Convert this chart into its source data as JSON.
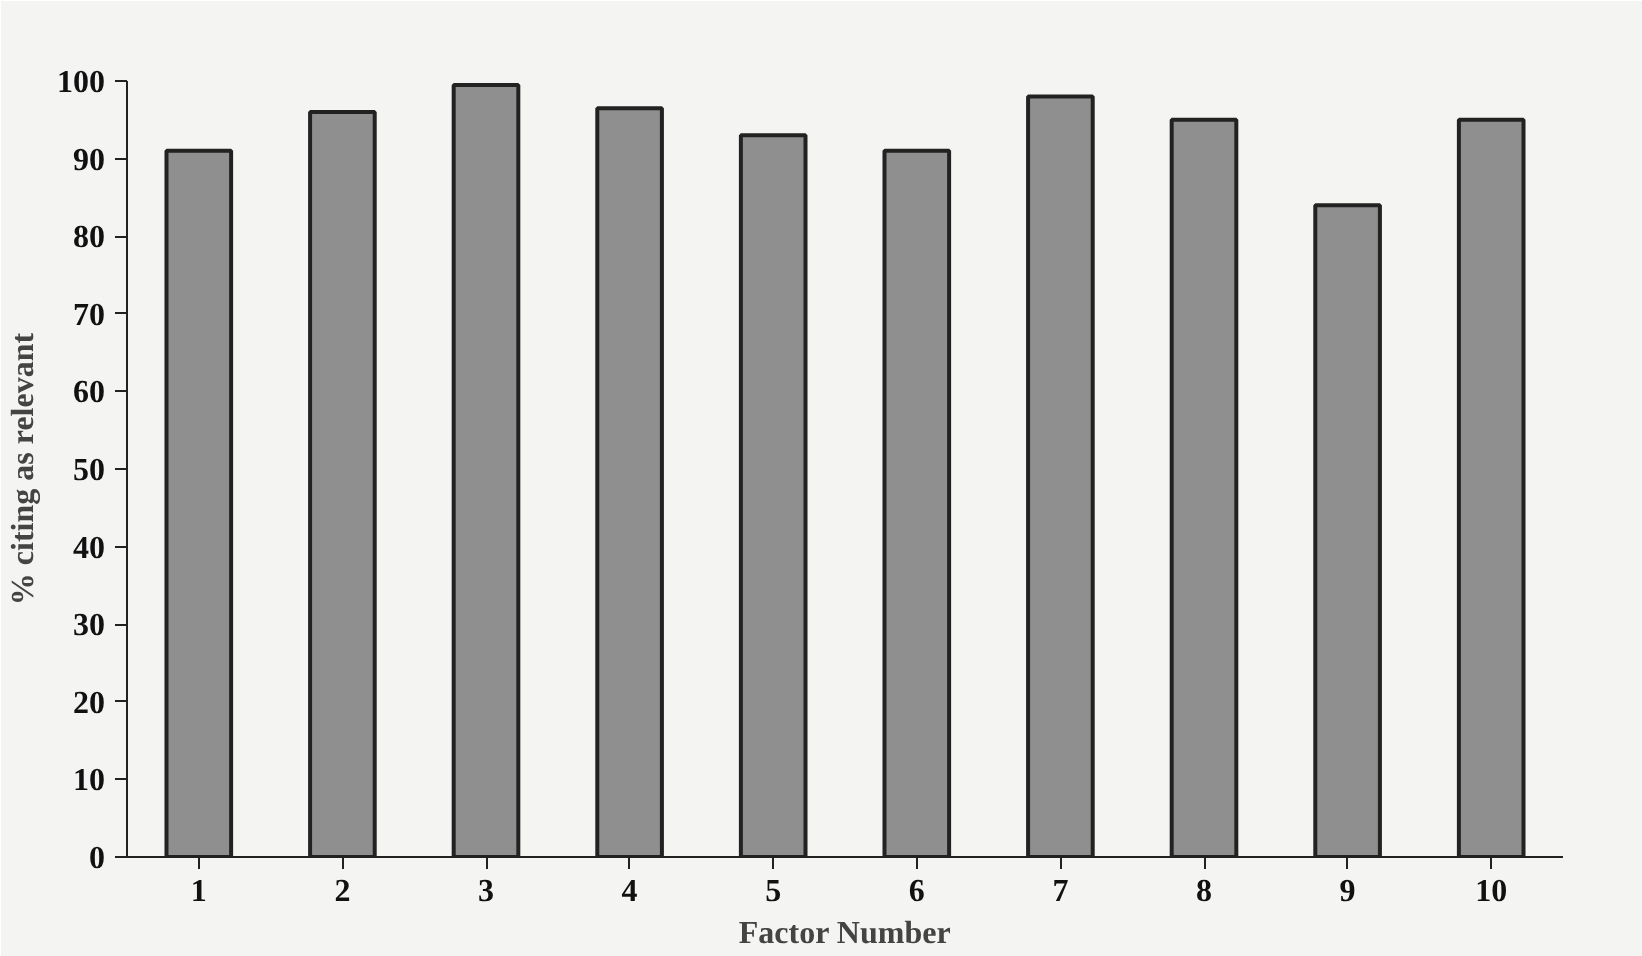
{
  "chart_data": {
    "type": "bar",
    "xlabel": "Factor Number",
    "ylabel": "% citing as relevant",
    "categories": [
      "1",
      "2",
      "3",
      "4",
      "5",
      "6",
      "7",
      "8",
      "9",
      "10"
    ],
    "values": [
      91,
      96,
      99.5,
      96.5,
      93,
      91,
      98,
      95,
      84,
      95
    ],
    "color": "#8f8f8f",
    "ylim": [
      0,
      100
    ],
    "yticks": [
      0,
      10,
      20,
      30,
      40,
      50,
      60,
      70,
      80,
      90,
      100
    ],
    "grid": false
  }
}
